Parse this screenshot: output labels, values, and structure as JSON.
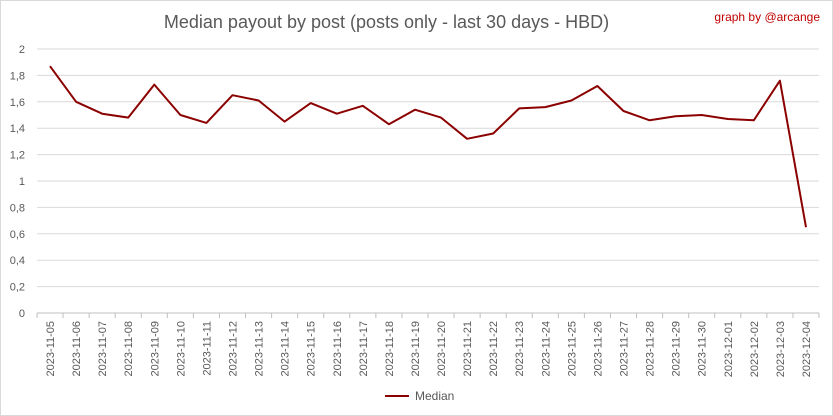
{
  "chart_data": {
    "type": "line",
    "title": "Median payout by post (posts only - last 30 days - HBD)",
    "credit": "graph by @arcange",
    "categories": [
      "2023-11-05",
      "2023-11-06",
      "2023-11-07",
      "2023-11-08",
      "2023-11-09",
      "2023-11-10",
      "2023-11-11",
      "2023-11-12",
      "2023-11-13",
      "2023-11-14",
      "2023-11-15",
      "2023-11-16",
      "2023-11-17",
      "2023-11-18",
      "2023-11-19",
      "2023-11-20",
      "2023-11-21",
      "2023-11-22",
      "2023-11-23",
      "2023-11-24",
      "2023-11-25",
      "2023-11-26",
      "2023-11-27",
      "2023-11-28",
      "2023-11-29",
      "2023-11-30",
      "2023-12-01",
      "2023-12-02",
      "2023-12-03",
      "2023-12-04"
    ],
    "series": [
      {
        "name": "Median",
        "color": "#8b0000",
        "values": [
          1.87,
          1.6,
          1.51,
          1.48,
          1.73,
          1.5,
          1.44,
          1.65,
          1.61,
          1.45,
          1.59,
          1.51,
          1.57,
          1.43,
          1.54,
          1.48,
          1.32,
          1.36,
          1.55,
          1.56,
          1.61,
          1.72,
          1.53,
          1.46,
          1.49,
          1.5,
          1.47,
          1.46,
          1.76,
          0.65
        ]
      }
    ],
    "y_ticks": [
      "0",
      "0,2",
      "0,4",
      "0,6",
      "0,8",
      "1",
      "1,2",
      "1,4",
      "1,6",
      "1,8",
      "2"
    ],
    "ylim": [
      0,
      2
    ],
    "grid": true,
    "legend_position": "bottom"
  }
}
